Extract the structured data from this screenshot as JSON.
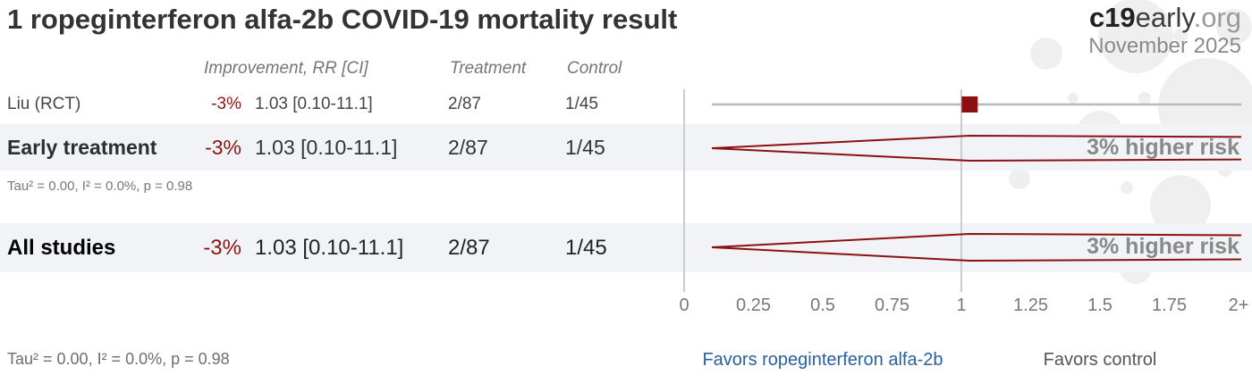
{
  "header": {
    "title": "1 ropeginterferon alfa-2b COVID-19 mortality result",
    "brand": {
      "bold": "c19",
      "regular": "early",
      "suffix": ".org"
    },
    "date": "November 2025"
  },
  "columns": {
    "improvement": "Improvement, RR [CI]",
    "treatment": "Treatment",
    "control": "Control"
  },
  "rows": {
    "liu": {
      "label": "Liu (RCT)",
      "improvement": "-3%",
      "rr": "1.03 [0.10-11.1]",
      "treatment": "2/87",
      "control": "1/45"
    },
    "early": {
      "label": "Early treatment",
      "improvement": "-3%",
      "rr": "1.03 [0.10-11.1]",
      "treatment": "2/87",
      "control": "1/45",
      "annotation": "3% higher risk"
    },
    "all": {
      "label": "All studies",
      "improvement": "-3%",
      "rr": "1.03 [0.10-11.1]",
      "treatment": "2/87",
      "control": "1/45",
      "annotation": "3% higher risk"
    }
  },
  "heterogeneity": {
    "early": "Tau² = 0.00, I² = 0.0%, p = 0.98",
    "all": "Tau² = 0.00, I² = 0.0%, p = 0.98"
  },
  "footer": {
    "favors_left": "Favors ropeginterferon alfa-2b",
    "favors_right": "Favors control"
  },
  "colors": {
    "accent_red": "#8b1111",
    "ci_line_gray": "#b9b9b9",
    "gridline_gray": "#cccccc",
    "band_gray": "#f2f3f6",
    "favors_blue": "#2a5fa0"
  },
  "chart_data": {
    "type": "scatter",
    "subtype": "forest-plot",
    "title": "1 ropeginterferon alfa-2b COVID-19 mortality result",
    "x_axis": {
      "tick_labels": [
        "0",
        "0.25",
        "0.5",
        "0.75",
        "1",
        "1.25",
        "1.5",
        "1.75",
        "2+"
      ],
      "tick_values": [
        0,
        0.25,
        0.5,
        0.75,
        1,
        1.25,
        1.5,
        1.75,
        2
      ],
      "range": [
        0,
        2
      ],
      "gridlines_at": [
        0,
        1
      ],
      "label_left": "Favors ropeginterferon alfa-2b",
      "label_right": "Favors control"
    },
    "series": [
      {
        "name": "Liu (RCT)",
        "marker": "square",
        "rr": 1.03,
        "ci": [
          0.1,
          11.1
        ],
        "improvement_pct": -3,
        "treatment_events": "2/87",
        "control_events": "1/45"
      },
      {
        "name": "Early treatment",
        "marker": "diamond",
        "rr": 1.03,
        "ci": [
          0.1,
          11.1
        ],
        "improvement_pct": -3,
        "treatment_events": "2/87",
        "control_events": "1/45",
        "annotation": "3% higher risk",
        "tau2": "0.00",
        "i2": "0.0%",
        "p": "0.98"
      },
      {
        "name": "All studies",
        "marker": "diamond",
        "rr": 1.03,
        "ci": [
          0.1,
          11.1
        ],
        "improvement_pct": -3,
        "treatment_events": "2/87",
        "control_events": "1/45",
        "annotation": "3% higher risk",
        "tau2": "0.00",
        "i2": "0.0%",
        "p": "0.98"
      }
    ]
  }
}
